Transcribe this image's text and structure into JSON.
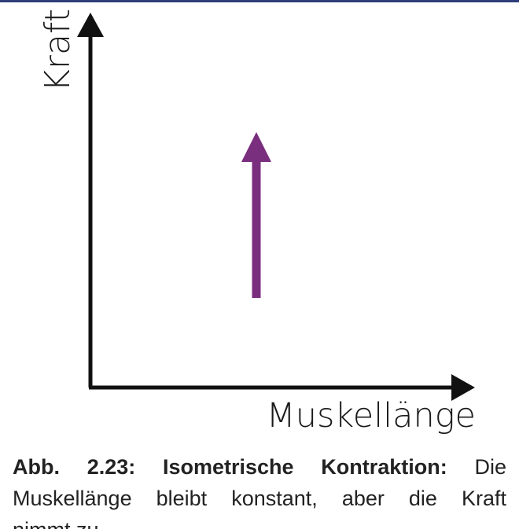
{
  "diagram": {
    "y_axis_label": "Kraft",
    "x_axis_label": "Muskellänge",
    "arrow_direction": "up",
    "colors": {
      "axis": "#111111",
      "arrow": "#7a2e7e",
      "header_bar": "#2f3d7a"
    }
  },
  "caption": {
    "figure_number": "Abb. 2.23:",
    "figure_title": "Isometrische Kontraktion:",
    "text_line1": "Die",
    "text_line2": "Muskellänge bleibt konstant, aber die Kraft",
    "text_line3": "nimmt zu."
  }
}
